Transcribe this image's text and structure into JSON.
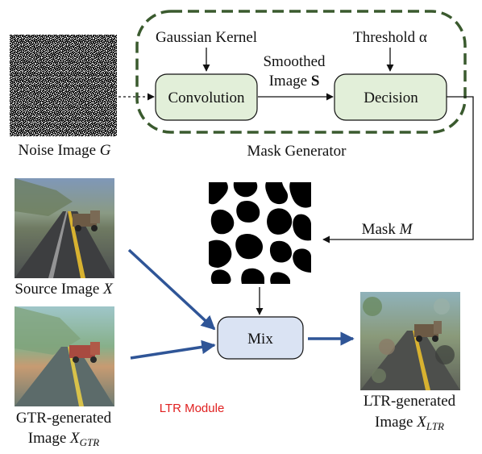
{
  "mask_generator": {
    "label": "Mask Generator",
    "gaussian_kernel": "Gaussian Kernel",
    "threshold": "Threshold α",
    "convolution": "Convolution",
    "decision": "Decision",
    "smoothed_line1": "Smoothed",
    "smoothed_line2_prefix": "Image ",
    "smoothed_line2_symbol": "S"
  },
  "noise_image": {
    "prefix": "Noise Image ",
    "symbol": "G"
  },
  "mask": {
    "prefix": "Mask ",
    "symbol": "M"
  },
  "source_image": {
    "prefix": "Source Image ",
    "symbol": "X"
  },
  "gtr_image": {
    "line1": "GTR-generated",
    "prefix": "Image ",
    "symbol": "X",
    "subscript": "GTR"
  },
  "mix": {
    "label": "Mix"
  },
  "ltr_image": {
    "line1": "LTR-generated",
    "prefix": "Image ",
    "symbol": "X",
    "subscript": "LTR"
  },
  "ltr_module": {
    "label": "LTR Module"
  },
  "colors": {
    "dashed_border": "#3a5a2e",
    "green_box_fill": "#e2efd9",
    "mix_box_fill": "#dae3f3",
    "blue_arrow": "#2f5597",
    "ltr_module_text": "#e02020"
  }
}
